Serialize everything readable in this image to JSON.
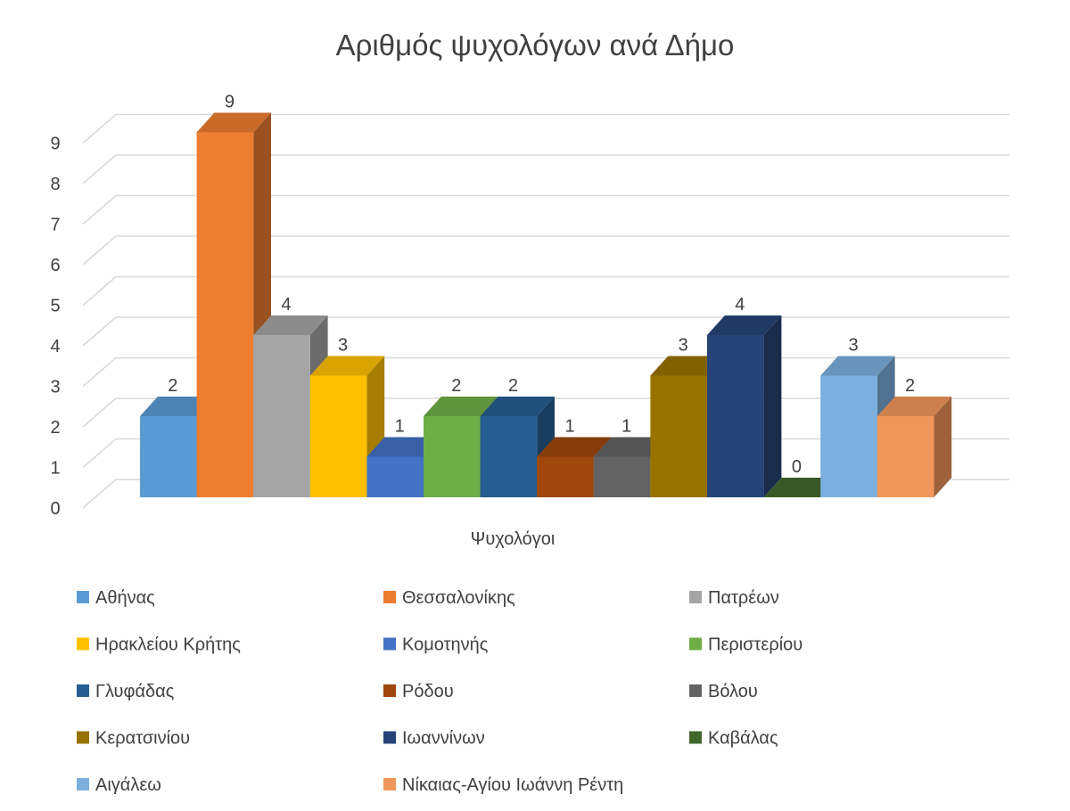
{
  "chart_data": {
    "type": "bar",
    "title": "Αριθμός ψυχολόγων ανά Δήμο",
    "xlabel": "Ψυχολόγοι",
    "ylabel": "",
    "ylim": [
      0,
      9
    ],
    "yticks": [
      "0",
      "1",
      "2",
      "3",
      "4",
      "5",
      "6",
      "7",
      "8",
      "9"
    ],
    "categories": [
      "Ψυχολόγοι"
    ],
    "grid": true,
    "legend_position": "bottom",
    "series": [
      {
        "name": "Αθήνας",
        "values": [
          2
        ],
        "color": "#5B9BD5"
      },
      {
        "name": "Θεσσαλονίκης",
        "values": [
          9
        ],
        "color": "#ED7D31"
      },
      {
        "name": "Πατρέων",
        "values": [
          4
        ],
        "color": "#A5A5A5"
      },
      {
        "name": "Ηρακλείου Κρήτης",
        "values": [
          3
        ],
        "color": "#FFC000"
      },
      {
        "name": "Κομοτηνής",
        "values": [
          1
        ],
        "color": "#4472C4"
      },
      {
        "name": "Περιστερίου",
        "values": [
          2
        ],
        "color": "#70AD47"
      },
      {
        "name": "Γλυφάδας",
        "values": [
          2
        ],
        "color": "#255E91"
      },
      {
        "name": "Ρόδου",
        "values": [
          1
        ],
        "color": "#9E480E"
      },
      {
        "name": "Βόλου",
        "values": [
          1
        ],
        "color": "#636363"
      },
      {
        "name": "Κερατσινίου",
        "values": [
          3
        ],
        "color": "#997300"
      },
      {
        "name": "Ιωαννίνων",
        "values": [
          4
        ],
        "color": "#264478"
      },
      {
        "name": "Καβάλας",
        "values": [
          0
        ],
        "color": "#43682B"
      },
      {
        "name": "Αιγάλεω",
        "values": [
          3
        ],
        "color": "#7CAFDD"
      },
      {
        "name": "Νίκαιας-Αγίου Ιωάννη Ρέντη",
        "values": [
          2
        ],
        "color": "#F1975A"
      }
    ]
  }
}
